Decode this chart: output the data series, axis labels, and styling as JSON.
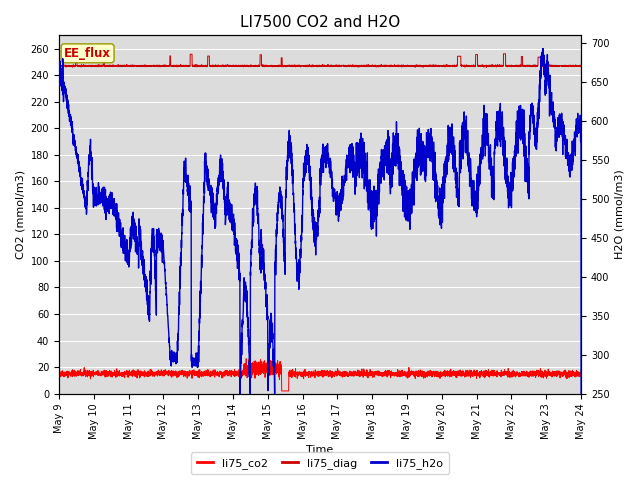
{
  "title": "LI7500 CO2 and H2O",
  "xlabel": "Time",
  "ylabel_left": "CO2 (mmol/m3)",
  "ylabel_right": "H2O (mmol/m3)",
  "ylim_left": [
    0,
    270
  ],
  "ylim_right": [
    250,
    710
  ],
  "x_tick_labels": [
    "May 9",
    "May 10",
    "May 11",
    "May 12",
    "May 13",
    "May 14",
    "May 15",
    "May 16",
    "May 17",
    "May 18",
    "May 19",
    "May 20",
    "May 21",
    "May 22",
    "May 23",
    "May 24"
  ],
  "bg_color": "#dcdcdc",
  "line_co2_color": "#ff0000",
  "line_diag_color": "#cc0000",
  "line_h2o_color": "#0000cc",
  "legend_labels": [
    "li75_co2",
    "li75_diag",
    "li75_h2o"
  ],
  "ee_flux_bg": "#ffffcc",
  "ee_flux_border": "#999900",
  "ee_flux_text_color": "#cc0000",
  "title_fontsize": 11,
  "grid_color": "#ffffff",
  "seed": 42
}
